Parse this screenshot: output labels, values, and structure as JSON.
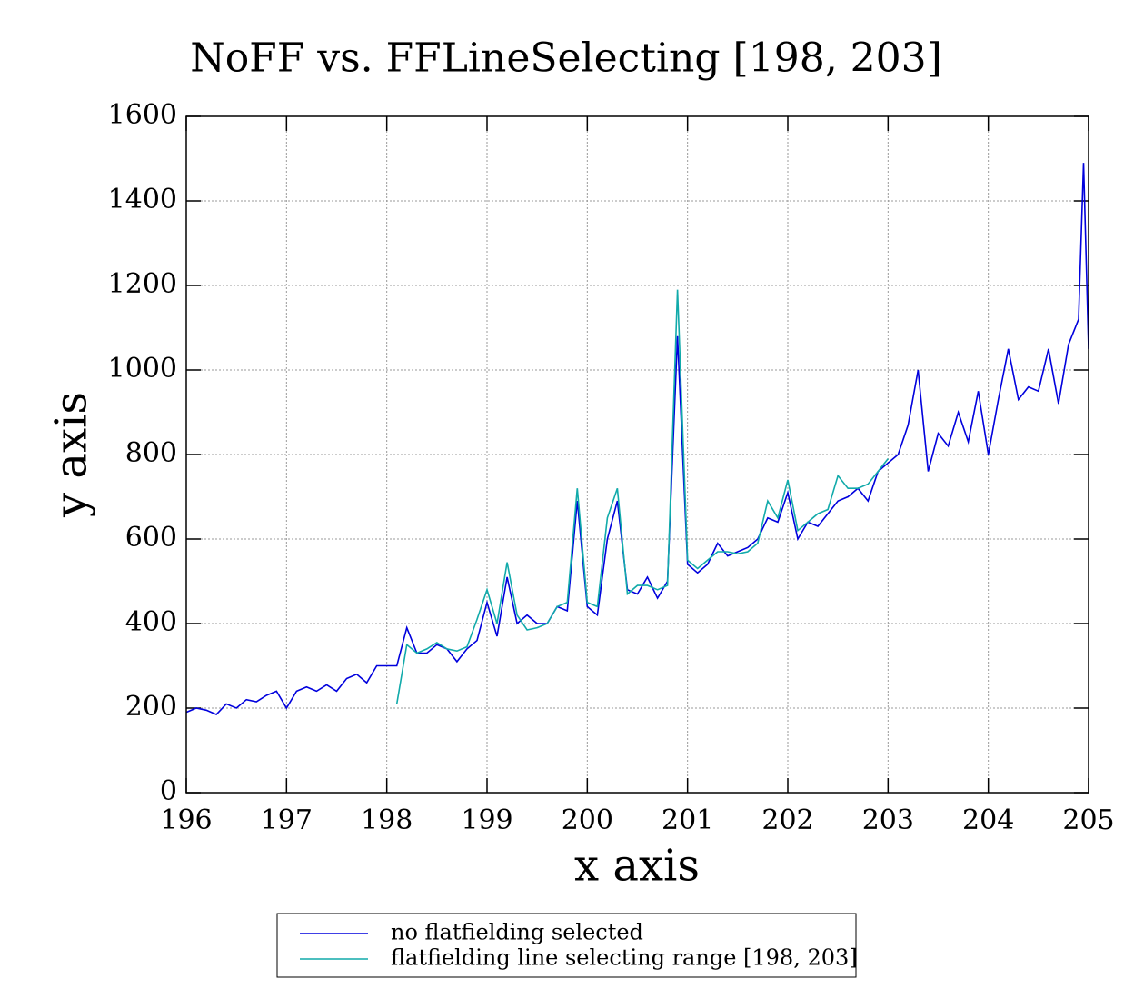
{
  "chart_data": {
    "type": "line",
    "title": "NoFF vs. FFLineSelecting [198, 203]",
    "xlabel": "x axis",
    "ylabel": "y axis",
    "xlim": [
      196,
      205
    ],
    "ylim": [
      0,
      1600
    ],
    "xticks": [
      196,
      197,
      198,
      199,
      200,
      201,
      202,
      203,
      204,
      205
    ],
    "yticks": [
      0,
      200,
      400,
      600,
      800,
      1000,
      1200,
      1400,
      1600
    ],
    "grid": true,
    "legend": "bottom",
    "series": [
      {
        "name": "no flatfielding selected",
        "color": "#0000dd",
        "x": [
          196.0,
          196.1,
          196.2,
          196.3,
          196.4,
          196.5,
          196.6,
          196.7,
          196.8,
          196.9,
          197.0,
          197.1,
          197.2,
          197.3,
          197.4,
          197.5,
          197.6,
          197.7,
          197.8,
          197.9,
          198.0,
          198.1,
          198.2,
          198.3,
          198.4,
          198.5,
          198.6,
          198.7,
          198.8,
          198.9,
          199.0,
          199.1,
          199.2,
          199.3,
          199.4,
          199.5,
          199.6,
          199.7,
          199.8,
          199.9,
          200.0,
          200.1,
          200.2,
          200.3,
          200.4,
          200.5,
          200.6,
          200.7,
          200.8,
          200.9,
          201.0,
          201.1,
          201.2,
          201.3,
          201.4,
          201.5,
          201.6,
          201.7,
          201.8,
          201.9,
          202.0,
          202.1,
          202.2,
          202.3,
          202.4,
          202.5,
          202.6,
          202.7,
          202.8,
          202.9,
          203.0,
          203.1,
          203.2,
          203.3,
          203.4,
          203.5,
          203.6,
          203.7,
          203.8,
          203.9,
          204.0,
          204.1,
          204.2,
          204.3,
          204.4,
          204.5,
          204.6,
          204.7,
          204.8,
          204.9,
          204.95,
          205.0
        ],
        "values": [
          190,
          200,
          195,
          185,
          210,
          200,
          220,
          215,
          230,
          240,
          200,
          240,
          250,
          240,
          255,
          240,
          270,
          280,
          260,
          300,
          300,
          300,
          390,
          330,
          330,
          350,
          340,
          310,
          340,
          360,
          450,
          370,
          510,
          400,
          420,
          400,
          400,
          440,
          430,
          690,
          440,
          420,
          600,
          690,
          480,
          470,
          510,
          460,
          500,
          1080,
          540,
          520,
          540,
          590,
          560,
          570,
          580,
          600,
          650,
          640,
          710,
          600,
          640,
          630,
          660,
          690,
          700,
          720,
          690,
          760,
          780,
          800,
          870,
          1000,
          760,
          850,
          820,
          900,
          830,
          950,
          800,
          930,
          1050,
          930,
          960,
          950,
          1050,
          920,
          1060,
          1120,
          1490,
          1050
        ]
      },
      {
        "name": "flatfielding line selecting range [198, 203]",
        "color": "#11aaaa",
        "x": [
          198.1,
          198.2,
          198.3,
          198.4,
          198.5,
          198.6,
          198.7,
          198.8,
          198.9,
          199.0,
          199.1,
          199.2,
          199.3,
          199.4,
          199.5,
          199.6,
          199.7,
          199.8,
          199.9,
          200.0,
          200.1,
          200.2,
          200.3,
          200.4,
          200.5,
          200.6,
          200.7,
          200.8,
          200.9,
          201.0,
          201.1,
          201.2,
          201.3,
          201.4,
          201.5,
          201.6,
          201.7,
          201.8,
          201.9,
          202.0,
          202.1,
          202.2,
          202.3,
          202.4,
          202.5,
          202.6,
          202.7,
          202.8,
          202.9,
          203.0
        ],
        "values": [
          210,
          350,
          330,
          340,
          355,
          340,
          335,
          345,
          410,
          480,
          400,
          545,
          420,
          385,
          390,
          400,
          440,
          450,
          720,
          450,
          440,
          650,
          720,
          470,
          490,
          490,
          480,
          490,
          1190,
          550,
          530,
          550,
          570,
          570,
          565,
          570,
          590,
          690,
          650,
          740,
          620,
          640,
          660,
          670,
          750,
          720,
          720,
          730,
          760,
          790
        ]
      }
    ]
  }
}
